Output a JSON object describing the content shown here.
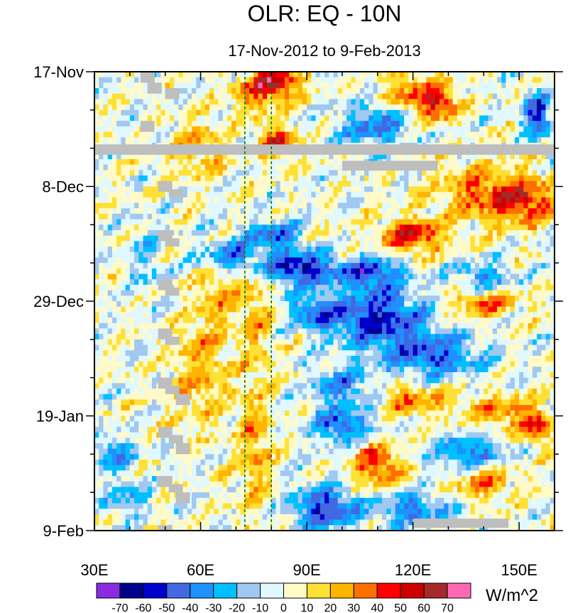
{
  "chart_data": {
    "type": "heatmap",
    "title": "OLR: EQ - 10N",
    "subtitle": "17-Nov-2012 to 9-Feb-2013",
    "x_axis": {
      "range": [
        30,
        160
      ],
      "ticks": [
        30,
        60,
        90,
        120,
        150
      ],
      "tick_labels": [
        "30E",
        "60E",
        "90E",
        "120E",
        "150E"
      ]
    },
    "y_axis": {
      "range_days": [
        0,
        84
      ],
      "ticks_days": [
        0,
        21,
        42,
        63,
        84
      ],
      "tick_labels": [
        "17-Nov",
        "8-Dec",
        "29-Dec",
        "19-Jan",
        "9-Feb"
      ]
    },
    "reference_lines_lon": [
      72.5,
      80
    ],
    "colorbar": {
      "units": "W/m^2",
      "levels": [
        -70,
        -60,
        -50,
        -40,
        -30,
        -20,
        -10,
        0,
        10,
        20,
        30,
        40,
        50,
        60,
        70
      ],
      "level_labels": [
        "-70",
        "-60",
        "-50",
        "-40",
        "-30",
        "-20",
        "-10",
        "0",
        "10",
        "20",
        "30",
        "40",
        "50",
        "60",
        "70"
      ],
      "colors": [
        "#8a2be2",
        "#00008b",
        "#0000cd",
        "#4169e1",
        "#1e90ff",
        "#00bfff",
        "#a0c8f0",
        "#e0f8ff",
        "#fffac8",
        "#ffe035",
        "#ffb400",
        "#ff6e00",
        "#ff0000",
        "#cd0000",
        "#a52a2a",
        "#ff69b4"
      ]
    },
    "missing_color": "#bebebe",
    "anomaly_features": [
      {
        "lon": 82,
        "day": 2,
        "value": 55,
        "sx": 6,
        "sy": 3
      },
      {
        "lon": 75,
        "day": 4,
        "value": 30,
        "sx": 6,
        "sy": 4
      },
      {
        "lon": 120,
        "day": 4,
        "value": 35,
        "sx": 8,
        "sy": 4
      },
      {
        "lon": 128,
        "day": 6,
        "value": 45,
        "sx": 5,
        "sy": 3
      },
      {
        "lon": 155,
        "day": 8,
        "value": -55,
        "sx": 4,
        "sy": 4
      },
      {
        "lon": 110,
        "day": 10,
        "value": -40,
        "sx": 10,
        "sy": 4
      },
      {
        "lon": 82,
        "day": 13,
        "value": 50,
        "sx": 5,
        "sy": 3
      },
      {
        "lon": 60,
        "day": 14,
        "value": 25,
        "sx": 8,
        "sy": 5
      },
      {
        "lon": 140,
        "day": 22,
        "value": 35,
        "sx": 14,
        "sy": 5
      },
      {
        "lon": 120,
        "day": 30,
        "value": 50,
        "sx": 9,
        "sy": 3
      },
      {
        "lon": 152,
        "day": 24,
        "value": 40,
        "sx": 8,
        "sy": 4
      },
      {
        "lon": 80,
        "day": 30,
        "value": -45,
        "sx": 8,
        "sy": 3
      },
      {
        "lon": 68,
        "day": 34,
        "value": -45,
        "sx": 8,
        "sy": 3
      },
      {
        "lon": 88,
        "day": 36,
        "value": -60,
        "sx": 10,
        "sy": 3
      },
      {
        "lon": 108,
        "day": 37,
        "value": -50,
        "sx": 9,
        "sy": 3
      },
      {
        "lon": 45,
        "day": 34,
        "value": -15,
        "sx": 5,
        "sy": 8
      },
      {
        "lon": 110,
        "day": 45,
        "value": -55,
        "sx": 14,
        "sy": 5
      },
      {
        "lon": 92,
        "day": 44,
        "value": -40,
        "sx": 6,
        "sy": 3
      },
      {
        "lon": 140,
        "day": 42,
        "value": 35,
        "sx": 10,
        "sy": 3
      },
      {
        "lon": 140,
        "day": 38,
        "value": -35,
        "sx": 8,
        "sy": 3
      },
      {
        "lon": 76,
        "day": 45,
        "value": 20,
        "sx": 5,
        "sy": 14
      },
      {
        "lon": 60,
        "day": 55,
        "value": 25,
        "sx": 8,
        "sy": 10
      },
      {
        "lon": 125,
        "day": 52,
        "value": -45,
        "sx": 14,
        "sy": 4
      },
      {
        "lon": 100,
        "day": 58,
        "value": -35,
        "sx": 8,
        "sy": 4
      },
      {
        "lon": 120,
        "day": 60,
        "value": 30,
        "sx": 10,
        "sy": 3
      },
      {
        "lon": 145,
        "day": 62,
        "value": 30,
        "sx": 10,
        "sy": 3
      },
      {
        "lon": 155,
        "day": 65,
        "value": 40,
        "sx": 5,
        "sy": 3
      },
      {
        "lon": 100,
        "day": 65,
        "value": -45,
        "sx": 8,
        "sy": 3
      },
      {
        "lon": 110,
        "day": 72,
        "value": 45,
        "sx": 7,
        "sy": 4
      },
      {
        "lon": 135,
        "day": 70,
        "value": -40,
        "sx": 10,
        "sy": 3
      },
      {
        "lon": 140,
        "day": 75,
        "value": 35,
        "sx": 8,
        "sy": 3
      },
      {
        "lon": 95,
        "day": 80,
        "value": -55,
        "sx": 9,
        "sy": 4
      },
      {
        "lon": 120,
        "day": 80,
        "value": -40,
        "sx": 10,
        "sy": 3
      },
      {
        "lon": 35,
        "day": 70,
        "value": -35,
        "sx": 6,
        "sy": 3
      },
      {
        "lon": 40,
        "day": 78,
        "value": -30,
        "sx": 6,
        "sy": 3
      },
      {
        "lon": 75,
        "day": 70,
        "value": 25,
        "sx": 5,
        "sy": 10
      },
      {
        "lon": 65,
        "day": 40,
        "value": 25,
        "sx": 6,
        "sy": 6
      }
    ],
    "missing_patches": [
      {
        "lon": [
          30,
          160
        ],
        "day": [
          13.3,
          15.2
        ]
      },
      {
        "lon": [
          100,
          127
        ],
        "day": [
          16.3,
          18.1
        ]
      },
      {
        "lon": [
          120,
          147
        ],
        "day": [
          81.8,
          83.5
        ]
      },
      {
        "lon": [
          43,
          47
        ],
        "day": [
          0,
          2
        ]
      },
      {
        "lon": [
          45,
          49
        ],
        "day": [
          2,
          4
        ]
      },
      {
        "lon": [
          50,
          54
        ],
        "day": [
          3,
          5
        ]
      },
      {
        "lon": [
          43,
          47
        ],
        "day": [
          9,
          11
        ]
      },
      {
        "lon": [
          48,
          52
        ],
        "day": [
          20,
          22
        ]
      },
      {
        "lon": [
          51,
          55
        ],
        "day": [
          21.5,
          23
        ]
      },
      {
        "lon": [
          48,
          52
        ],
        "day": [
          29,
          31
        ]
      },
      {
        "lon": [
          50,
          54
        ],
        "day": [
          30.5,
          32
        ]
      },
      {
        "lon": [
          48,
          52
        ],
        "day": [
          38,
          40
        ]
      },
      {
        "lon": [
          50,
          54
        ],
        "day": [
          39.5,
          41
        ]
      },
      {
        "lon": [
          48,
          52
        ],
        "day": [
          47,
          49
        ]
      },
      {
        "lon": [
          50,
          54
        ],
        "day": [
          48.5,
          50
        ]
      },
      {
        "lon": [
          48,
          52
        ],
        "day": [
          56,
          58
        ]
      },
      {
        "lon": [
          50,
          54
        ],
        "day": [
          57.5,
          59
        ]
      },
      {
        "lon": [
          53,
          57
        ],
        "day": [
          59,
          61
        ]
      },
      {
        "lon": [
          48,
          52
        ],
        "day": [
          65,
          67
        ]
      },
      {
        "lon": [
          51,
          55
        ],
        "day": [
          66.5,
          68
        ]
      },
      {
        "lon": [
          53,
          57
        ],
        "day": [
          68,
          70
        ]
      },
      {
        "lon": [
          48,
          52
        ],
        "day": [
          74,
          76
        ]
      },
      {
        "lon": [
          51,
          55
        ],
        "day": [
          75.5,
          77
        ]
      },
      {
        "lon": [
          53,
          57
        ],
        "day": [
          77,
          79
        ]
      },
      {
        "lon": [
          48,
          52
        ],
        "day": [
          83,
          84
        ]
      }
    ]
  }
}
